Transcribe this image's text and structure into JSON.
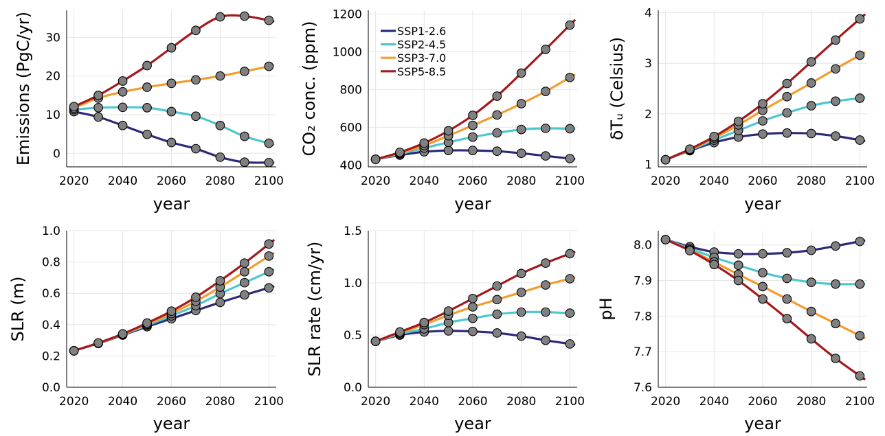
{
  "legend": {
    "entries": [
      {
        "name": "SSP1-2.6",
        "color": "#2b2a7a"
      },
      {
        "name": "SSP2-4.5",
        "color": "#4fc6cf"
      },
      {
        "name": "SSP3-7.0",
        "color": "#f39c2e"
      },
      {
        "name": "SSP5-8.5",
        "color": "#a3191c"
      }
    ]
  },
  "marker_color": "#808080",
  "chart_data": [
    {
      "type": "line",
      "xlabel": "year",
      "ylabel": "Emissions (PgC/yr)",
      "xlim": [
        2017,
        2103
      ],
      "ylim": [
        -3.5,
        37
      ],
      "xticks": [
        2020,
        2040,
        2060,
        2080,
        2100
      ],
      "xtick_labels": [
        "2020",
        "2040",
        "2060",
        "2080",
        "2100"
      ],
      "yticks": [
        0,
        10,
        20,
        30
      ],
      "ytick_labels": [
        "0",
        "10",
        "20",
        "30"
      ],
      "grid": true,
      "x": [
        2020,
        2030,
        2040,
        2050,
        2060,
        2070,
        2080,
        2090,
        2100
      ],
      "series": [
        {
          "name": "SSP1-2.6",
          "color": "#2b2a7a",
          "values": [
            10.8,
            9.4,
            7.2,
            4.9,
            2.8,
            1.2,
            -1.0,
            -2.3,
            -2.4
          ]
        },
        {
          "name": "SSP2-4.5",
          "color": "#4fc6cf",
          "values": [
            11.3,
            11.8,
            11.9,
            11.8,
            10.8,
            9.6,
            7.2,
            4.4,
            2.6
          ]
        },
        {
          "name": "SSP3-7.0",
          "color": "#f39c2e",
          "values": [
            11.7,
            14.3,
            15.9,
            17.1,
            18.1,
            19.0,
            20.0,
            21.2,
            22.5
          ]
        },
        {
          "name": "SSP5-8.5",
          "color": "#a3191c",
          "values": [
            12.1,
            15.0,
            18.7,
            22.7,
            27.3,
            31.8,
            35.3,
            35.5,
            34.4
          ]
        }
      ]
    },
    {
      "type": "line",
      "xlabel": "year",
      "ylabel": "CO₂ conc. (ppm)",
      "xlim": [
        2017,
        2103
      ],
      "ylim": [
        390,
        1220
      ],
      "xticks": [
        2020,
        2040,
        2060,
        2080,
        2100
      ],
      "xtick_labels": [
        "2020",
        "2040",
        "2060",
        "2080",
        "2100"
      ],
      "yticks": [
        400,
        600,
        800,
        1000,
        1200
      ],
      "ytick_labels": [
        "400",
        "600",
        "800",
        "1000",
        "1200"
      ],
      "grid": true,
      "legend_position": "top-left",
      "x": [
        2020,
        2030,
        2040,
        2050,
        2060,
        2070,
        2080,
        2090,
        2100
      ],
      "series": [
        {
          "name": "SSP1-2.6",
          "color": "#2b2a7a",
          "values": [
            430,
            452,
            470,
            477,
            477,
            473,
            462,
            448,
            434
          ]
        },
        {
          "name": "SSP2-4.5",
          "color": "#4fc6cf",
          "values": [
            430,
            458,
            490,
            520,
            548,
            570,
            588,
            594,
            592
          ]
        },
        {
          "name": "SSP3-7.0",
          "color": "#f39c2e",
          "values": [
            430,
            462,
            503,
            555,
            610,
            665,
            725,
            790,
            864
          ]
        },
        {
          "name": "SSP5-8.5",
          "color": "#a3191c",
          "values": [
            430,
            467,
            516,
            581,
            663,
            765,
            887,
            1013,
            1142
          ]
        }
      ]
    },
    {
      "type": "line",
      "xlabel": "year",
      "ylabel": "δTᵤ (Celsius)",
      "xlim": [
        2017,
        2103
      ],
      "ylim": [
        0.95,
        4.05
      ],
      "xticks": [
        2020,
        2040,
        2060,
        2080,
        2100
      ],
      "xtick_labels": [
        "2020",
        "2040",
        "2060",
        "2080",
        "2100"
      ],
      "yticks": [
        1,
        2,
        3,
        4
      ],
      "ytick_labels": [
        "1",
        "2",
        "3",
        "4"
      ],
      "grid": true,
      "x": [
        2020,
        2030,
        2040,
        2050,
        2060,
        2070,
        2080,
        2090,
        2100
      ],
      "series": [
        {
          "name": "SSP1-2.6",
          "color": "#2b2a7a",
          "values": [
            1.09,
            1.27,
            1.43,
            1.54,
            1.6,
            1.62,
            1.61,
            1.56,
            1.48
          ]
        },
        {
          "name": "SSP2-4.5",
          "color": "#4fc6cf",
          "values": [
            1.09,
            1.28,
            1.48,
            1.67,
            1.86,
            2.02,
            2.16,
            2.25,
            2.31
          ]
        },
        {
          "name": "SSP3-7.0",
          "color": "#f39c2e",
          "values": [
            1.09,
            1.29,
            1.52,
            1.78,
            2.07,
            2.34,
            2.61,
            2.89,
            3.16
          ]
        },
        {
          "name": "SSP5-8.5",
          "color": "#a3191c",
          "values": [
            1.09,
            1.3,
            1.55,
            1.85,
            2.2,
            2.6,
            3.03,
            3.46,
            3.88
          ]
        }
      ]
    },
    {
      "type": "line",
      "xlabel": "year",
      "ylabel": "SLR (m)",
      "xlim": [
        2017,
        2103
      ],
      "ylim": [
        0.0,
        1.0
      ],
      "xticks": [
        2020,
        2040,
        2060,
        2080,
        2100
      ],
      "xtick_labels": [
        "2020",
        "2040",
        "2060",
        "2080",
        "2100"
      ],
      "yticks": [
        0.0,
        0.2,
        0.4,
        0.6,
        0.8,
        1.0
      ],
      "ytick_labels": [
        "0.0",
        "0.2",
        "0.4",
        "0.6",
        "0.8",
        "1.0"
      ],
      "grid": true,
      "x": [
        2020,
        2030,
        2040,
        2050,
        2060,
        2070,
        2080,
        2090,
        2100
      ],
      "series": [
        {
          "name": "SSP1-2.6",
          "color": "#2b2a7a",
          "values": [
            0.233,
            0.28,
            0.333,
            0.387,
            0.438,
            0.49,
            0.542,
            0.59,
            0.635
          ]
        },
        {
          "name": "SSP2-4.5",
          "color": "#4fc6cf",
          "values": [
            0.233,
            0.281,
            0.336,
            0.395,
            0.456,
            0.521,
            0.598,
            0.668,
            0.738
          ]
        },
        {
          "name": "SSP3-7.0",
          "color": "#f39c2e",
          "values": [
            0.233,
            0.282,
            0.338,
            0.402,
            0.471,
            0.549,
            0.64,
            0.738,
            0.838
          ]
        },
        {
          "name": "SSP5-8.5",
          "color": "#a3191c",
          "values": [
            0.233,
            0.283,
            0.341,
            0.41,
            0.486,
            0.575,
            0.68,
            0.793,
            0.915
          ]
        }
      ]
    },
    {
      "type": "line",
      "xlabel": "year",
      "ylabel": "SLR rate (cm/yr)",
      "xlim": [
        2017,
        2103
      ],
      "ylim": [
        0.0,
        1.5
      ],
      "xticks": [
        2020,
        2040,
        2060,
        2080,
        2100
      ],
      "xtick_labels": [
        "2020",
        "2040",
        "2060",
        "2080",
        "2100"
      ],
      "yticks": [
        0.0,
        0.5,
        1.0,
        1.5
      ],
      "ytick_labels": [
        "0.0",
        "0.5",
        "1.0",
        "1.5"
      ],
      "grid": true,
      "x": [
        2020,
        2030,
        2040,
        2050,
        2060,
        2070,
        2080,
        2090,
        2100
      ],
      "series": [
        {
          "name": "SSP1-2.6",
          "color": "#2b2a7a",
          "values": [
            0.44,
            0.5,
            0.53,
            0.54,
            0.535,
            0.52,
            0.49,
            0.45,
            0.415
          ]
        },
        {
          "name": "SSP2-4.5",
          "color": "#4fc6cf",
          "values": [
            0.44,
            0.51,
            0.56,
            0.62,
            0.66,
            0.7,
            0.72,
            0.72,
            0.71
          ]
        },
        {
          "name": "SSP3-7.0",
          "color": "#f39c2e",
          "values": [
            0.44,
            0.52,
            0.6,
            0.69,
            0.77,
            0.84,
            0.91,
            0.98,
            1.04
          ]
        },
        {
          "name": "SSP5-8.5",
          "color": "#a3191c",
          "values": [
            0.44,
            0.53,
            0.62,
            0.73,
            0.85,
            0.97,
            1.09,
            1.19,
            1.28
          ]
        }
      ]
    },
    {
      "type": "line",
      "xlabel": "year",
      "ylabel": "pH",
      "xlim": [
        2017,
        2103
      ],
      "ylim": [
        7.6,
        8.04
      ],
      "xticks": [
        2020,
        2040,
        2060,
        2080,
        2100
      ],
      "xtick_labels": [
        "2020",
        "2040",
        "2060",
        "2080",
        "2100"
      ],
      "yticks": [
        7.6,
        7.7,
        7.8,
        7.9,
        8.0
      ],
      "ytick_labels": [
        "7.6",
        "7.7",
        "7.8",
        "7.9",
        "8.0"
      ],
      "grid": true,
      "x": [
        2020,
        2030,
        2040,
        2050,
        2060,
        2070,
        2080,
        2090,
        2100
      ],
      "series": [
        {
          "name": "SSP1-2.6",
          "color": "#2b2a7a",
          "values": [
            8.015,
            7.995,
            7.98,
            7.975,
            7.975,
            7.978,
            7.985,
            7.997,
            8.01
          ]
        },
        {
          "name": "SSP2-4.5",
          "color": "#4fc6cf",
          "values": [
            8.015,
            7.99,
            7.965,
            7.943,
            7.922,
            7.906,
            7.895,
            7.89,
            7.89
          ]
        },
        {
          "name": "SSP3-7.0",
          "color": "#f39c2e",
          "values": [
            8.015,
            7.986,
            7.952,
            7.917,
            7.883,
            7.848,
            7.813,
            7.779,
            7.745
          ]
        },
        {
          "name": "SSP5-8.5",
          "color": "#a3191c",
          "values": [
            8.015,
            7.984,
            7.945,
            7.9,
            7.848,
            7.793,
            7.736,
            7.681,
            7.632
          ]
        }
      ]
    }
  ]
}
